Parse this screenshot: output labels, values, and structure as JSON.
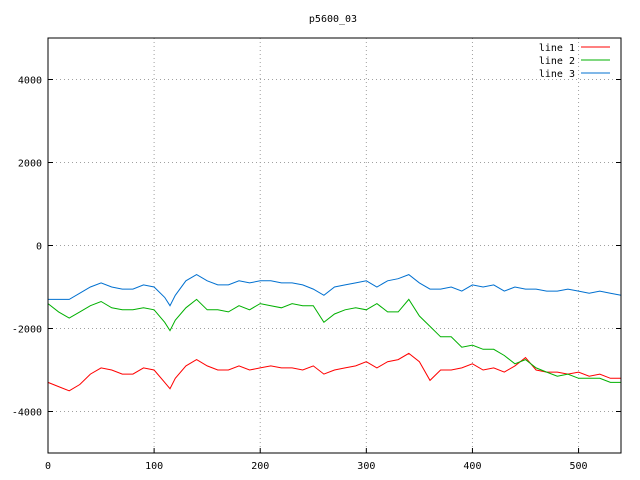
{
  "chart_data": {
    "type": "line",
    "title": "p5600_03",
    "xlim": [
      0,
      540
    ],
    "ylim": [
      -5000,
      5000
    ],
    "x_ticks": [
      0,
      100,
      200,
      300,
      400,
      500
    ],
    "y_ticks": [
      -4000,
      -2000,
      0,
      2000,
      4000
    ],
    "grid": true,
    "grid_style": "dotted",
    "legend_position": "top-right",
    "series": [
      {
        "name": "line 1",
        "color": "#ff0000",
        "x": [
          0,
          10,
          20,
          30,
          40,
          50,
          60,
          70,
          80,
          90,
          100,
          110,
          115,
          120,
          130,
          140,
          150,
          160,
          170,
          180,
          190,
          200,
          210,
          220,
          230,
          240,
          250,
          260,
          270,
          280,
          290,
          300,
          310,
          320,
          330,
          340,
          350,
          360,
          370,
          380,
          390,
          400,
          410,
          420,
          430,
          440,
          450,
          460,
          470,
          480,
          490,
          500,
          510,
          520,
          530,
          540
        ],
        "y": [
          -3300,
          -3400,
          -3500,
          -3350,
          -3100,
          -2950,
          -3000,
          -3100,
          -3100,
          -2950,
          -3000,
          -3300,
          -3450,
          -3200,
          -2900,
          -2750,
          -2900,
          -3000,
          -3000,
          -2900,
          -3000,
          -2950,
          -2900,
          -2950,
          -2950,
          -3000,
          -2900,
          -3100,
          -3000,
          -2950,
          -2900,
          -2800,
          -2950,
          -2800,
          -2750,
          -2600,
          -2800,
          -3250,
          -3000,
          -3000,
          -2950,
          -2850,
          -3000,
          -2950,
          -3050,
          -2900,
          -2700,
          -3000,
          -3050,
          -3050,
          -3100,
          -3050,
          -3150,
          -3100,
          -3200,
          -3200
        ]
      },
      {
        "name": "line 2",
        "color": "#00b000",
        "x": [
          0,
          10,
          20,
          30,
          40,
          50,
          60,
          70,
          80,
          90,
          100,
          110,
          115,
          120,
          130,
          140,
          150,
          160,
          170,
          180,
          190,
          200,
          210,
          220,
          230,
          240,
          250,
          260,
          270,
          280,
          290,
          300,
          310,
          320,
          330,
          340,
          350,
          360,
          370,
          380,
          390,
          400,
          410,
          420,
          430,
          440,
          450,
          460,
          470,
          480,
          490,
          500,
          510,
          520,
          530,
          540
        ],
        "y": [
          -1400,
          -1600,
          -1750,
          -1600,
          -1450,
          -1350,
          -1500,
          -1550,
          -1550,
          -1500,
          -1550,
          -1850,
          -2050,
          -1800,
          -1500,
          -1300,
          -1550,
          -1550,
          -1600,
          -1450,
          -1550,
          -1400,
          -1450,
          -1500,
          -1400,
          -1450,
          -1450,
          -1850,
          -1650,
          -1550,
          -1500,
          -1550,
          -1400,
          -1600,
          -1600,
          -1300,
          -1700,
          -1950,
          -2200,
          -2200,
          -2450,
          -2400,
          -2500,
          -2500,
          -2650,
          -2850,
          -2750,
          -2950,
          -3050,
          -3150,
          -3100,
          -3200,
          -3200,
          -3200,
          -3300,
          -3300
        ]
      },
      {
        "name": "line 3",
        "color": "#0070d0",
        "x": [
          0,
          10,
          20,
          30,
          40,
          50,
          60,
          70,
          80,
          90,
          100,
          110,
          115,
          120,
          130,
          140,
          150,
          160,
          170,
          180,
          190,
          200,
          210,
          220,
          230,
          240,
          250,
          260,
          270,
          280,
          290,
          300,
          310,
          320,
          330,
          340,
          350,
          360,
          370,
          380,
          390,
          400,
          410,
          420,
          430,
          440,
          450,
          460,
          470,
          480,
          490,
          500,
          510,
          520,
          530,
          540
        ],
        "y": [
          -1300,
          -1300,
          -1300,
          -1150,
          -1000,
          -900,
          -1000,
          -1050,
          -1050,
          -950,
          -1000,
          -1250,
          -1450,
          -1200,
          -850,
          -700,
          -850,
          -950,
          -950,
          -850,
          -900,
          -850,
          -850,
          -900,
          -900,
          -950,
          -1050,
          -1200,
          -1000,
          -950,
          -900,
          -850,
          -1000,
          -850,
          -800,
          -700,
          -900,
          -1050,
          -1050,
          -1000,
          -1100,
          -950,
          -1000,
          -950,
          -1100,
          -1000,
          -1050,
          -1050,
          -1100,
          -1100,
          -1050,
          -1100,
          -1150,
          -1100,
          -1150,
          -1200
        ]
      }
    ]
  }
}
